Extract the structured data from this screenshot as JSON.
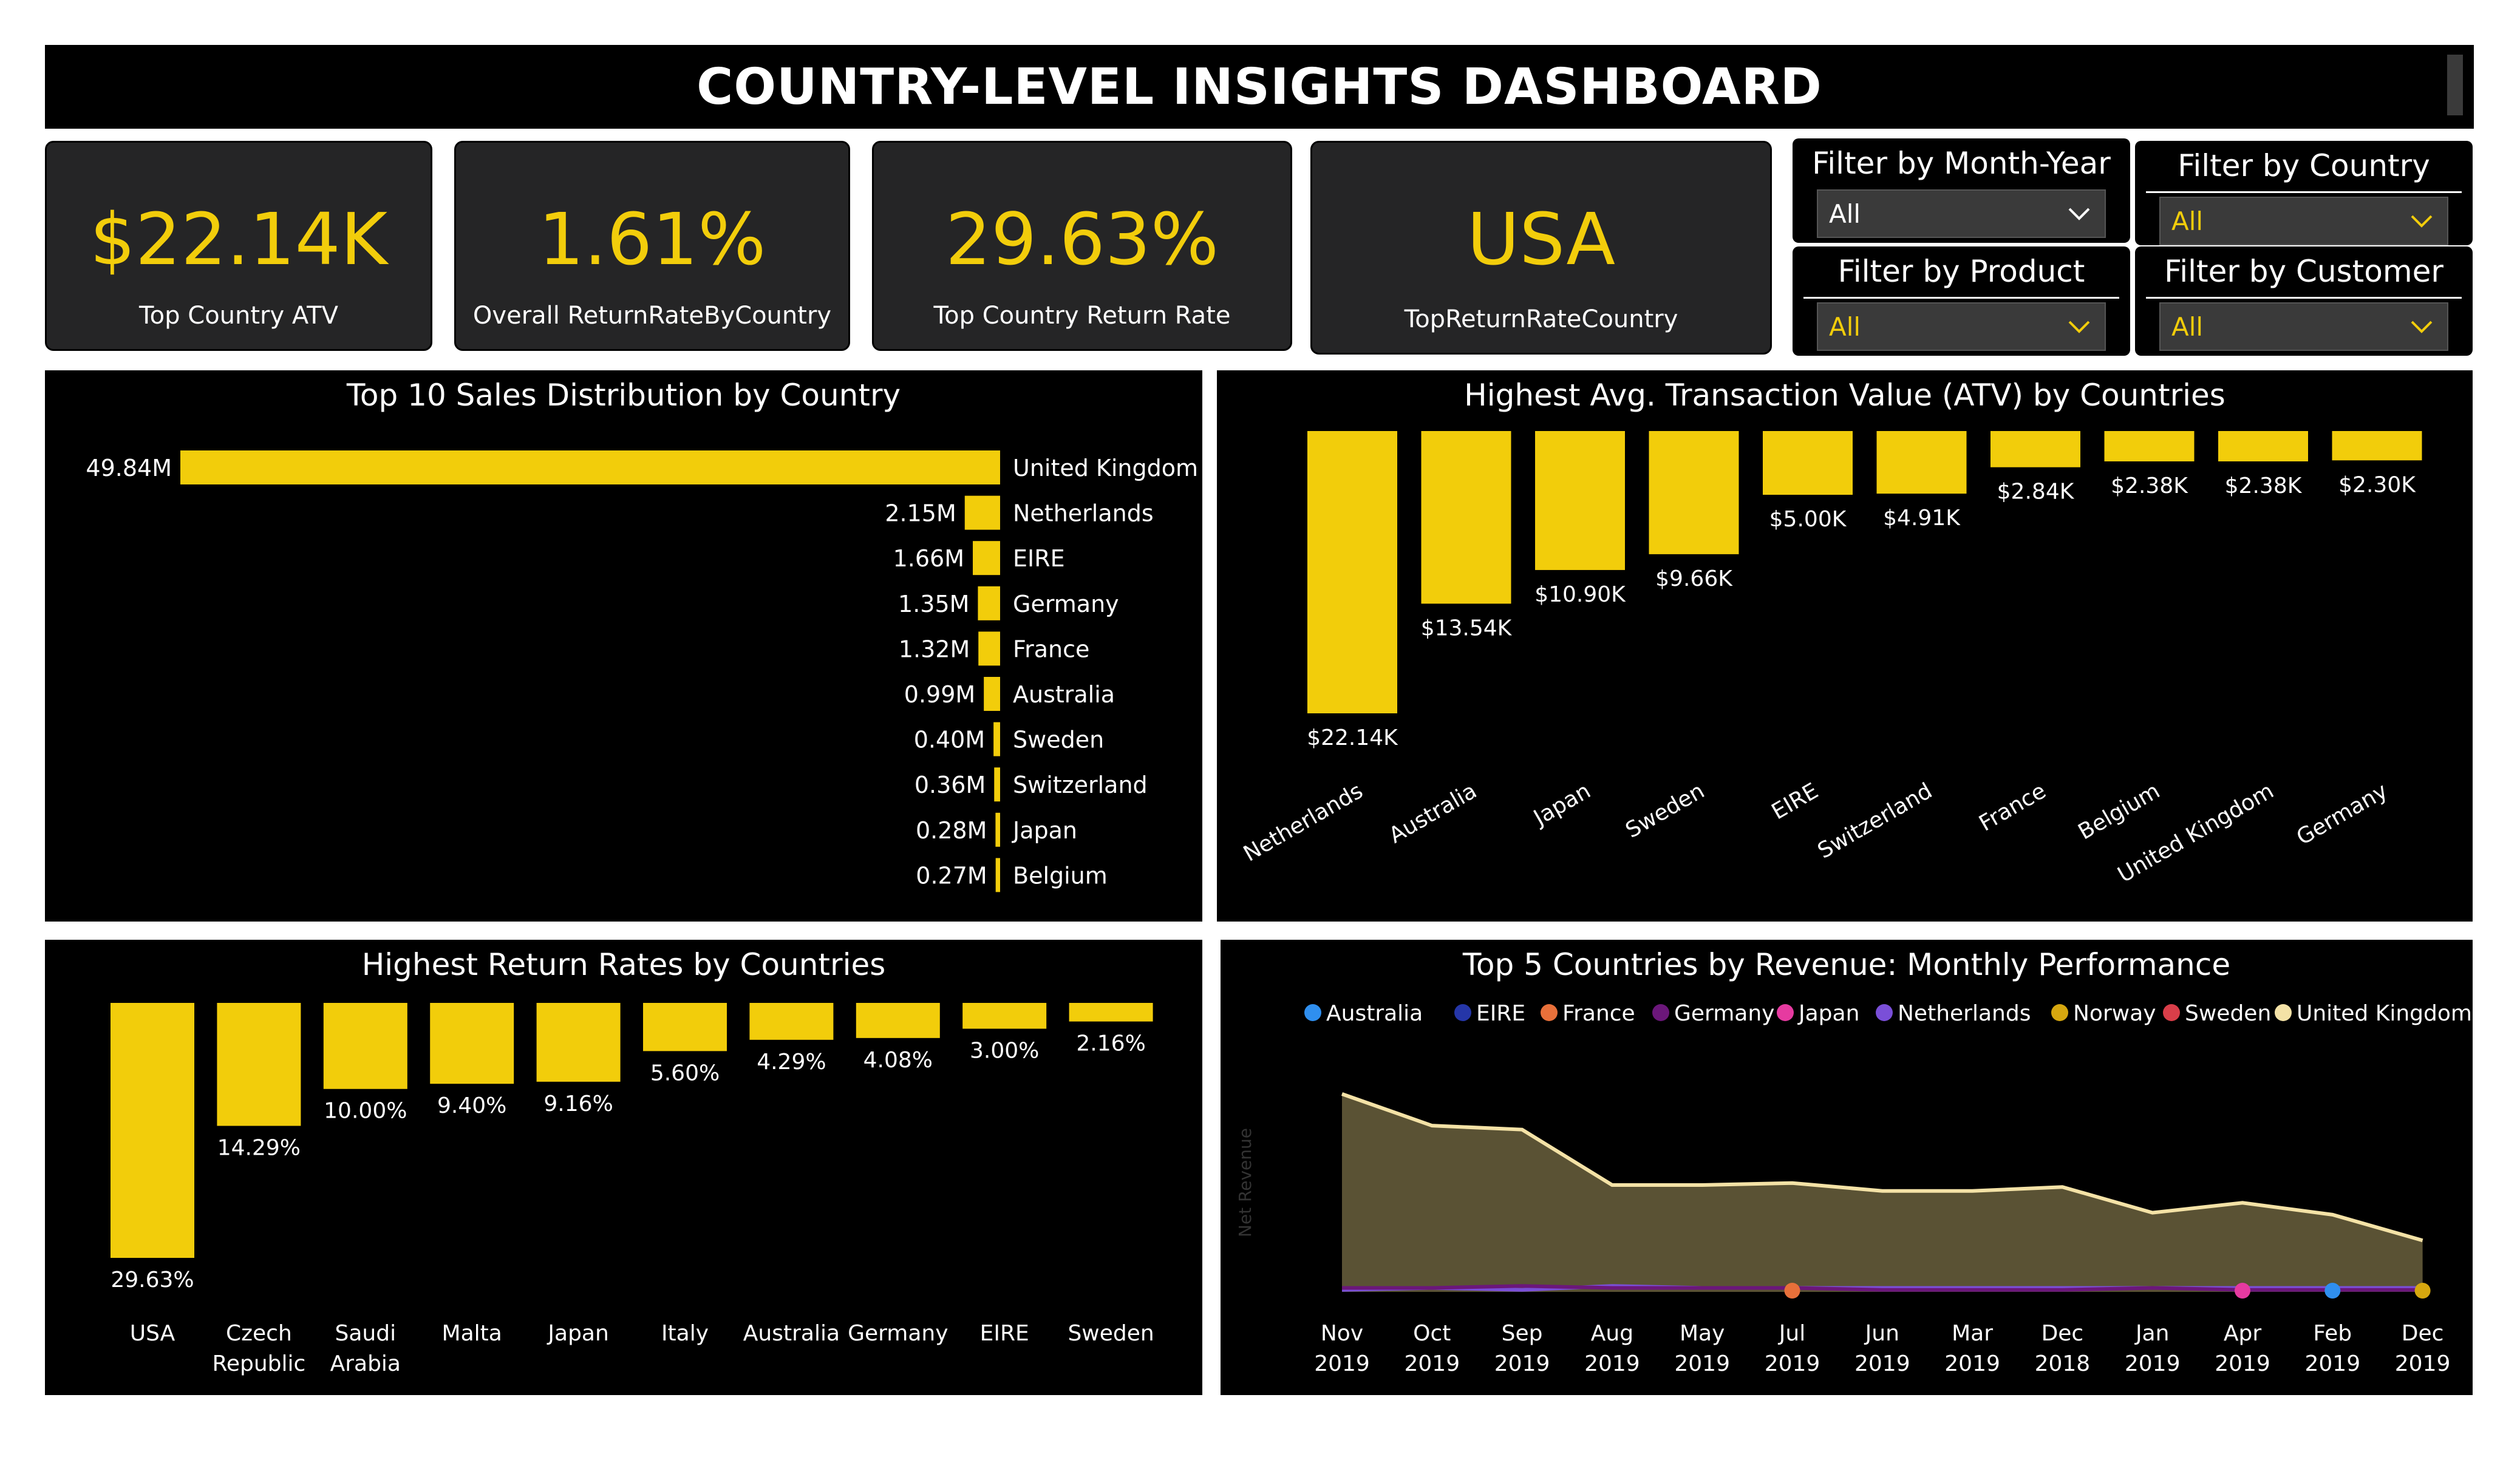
{
  "header": {
    "title": "COUNTRY-LEVEL INSIGHTS DASHBOARD"
  },
  "kpis": [
    {
      "value": "$22.14K",
      "label": "Top Country ATV"
    },
    {
      "value": "1.61%",
      "label": "Overall ReturnRateByCountry"
    },
    {
      "value": "29.63%",
      "label": "Top Country Return Rate"
    },
    {
      "value": "USA",
      "label": "TopReturnRateCountry"
    }
  ],
  "filters": [
    {
      "label": "Filter by Month-Year",
      "value": "All",
      "value_color": "#ffffff"
    },
    {
      "label": "Filter by Country",
      "value": "All",
      "value_color": "#f2cd0b"
    },
    {
      "label": "Filter by Product",
      "value": "All",
      "value_color": "#f2cd0b"
    },
    {
      "label": "Filter by Customer",
      "value": "All",
      "value_color": "#f2cd0b"
    }
  ],
  "colors": {
    "accent": "#f2cd0b",
    "panel_bg": "#000000",
    "kpi_bg": "#252526",
    "area_fill": "#5a5234",
    "area_line": "#f4e2a6"
  },
  "chart_data": [
    {
      "type": "bar",
      "orientation": "horizontal",
      "title": "Top 10 Sales Distribution by Country",
      "categories": [
        "United Kingdom",
        "Netherlands",
        "EIRE",
        "Germany",
        "France",
        "Australia",
        "Sweden",
        "Switzerland",
        "Japan",
        "Belgium"
      ],
      "values": [
        49.84,
        2.15,
        1.66,
        1.35,
        1.32,
        0.99,
        0.4,
        0.36,
        0.28,
        0.27
      ],
      "labels": [
        "49.84M",
        "2.15M",
        "1.66M",
        "1.35M",
        "1.32M",
        "0.99M",
        "0.40M",
        "0.36M",
        "0.28M",
        "0.27M"
      ],
      "unit": "M"
    },
    {
      "type": "bar",
      "title": "Highest Avg. Transaction Value (ATV) by Countries",
      "categories": [
        "Netherlands",
        "Australia",
        "Japan",
        "Sweden",
        "EIRE",
        "Switzerland",
        "France",
        "Belgium",
        "United Kingdom",
        "Germany"
      ],
      "values": [
        22.14,
        13.54,
        10.9,
        9.66,
        5.0,
        4.91,
        2.84,
        2.38,
        2.38,
        2.3
      ],
      "labels": [
        "$22.14K",
        "$13.54K",
        "$10.90K",
        "$9.66K",
        "$5.00K",
        "$4.91K",
        "$2.84K",
        "$2.38K",
        "$2.38K",
        "$2.30K"
      ],
      "unit": "K"
    },
    {
      "type": "bar",
      "title": "Highest Return Rates by Countries",
      "categories": [
        "USA",
        "Czech Republic",
        "Saudi Arabia",
        "Malta",
        "Japan",
        "Italy",
        "Australia",
        "Germany",
        "EIRE",
        "Sweden"
      ],
      "category_lines": [
        [
          "USA"
        ],
        [
          "Czech",
          "Republic"
        ],
        [
          "Saudi",
          "Arabia"
        ],
        [
          "Malta"
        ],
        [
          "Japan"
        ],
        [
          "Italy"
        ],
        [
          "Australia"
        ],
        [
          "Germany"
        ],
        [
          "EIRE"
        ],
        [
          "Sweden"
        ]
      ],
      "values": [
        29.63,
        14.29,
        10.0,
        9.4,
        9.16,
        5.6,
        4.29,
        4.08,
        3.0,
        2.16
      ],
      "labels": [
        "29.63%",
        "14.29%",
        "10.00%",
        "9.40%",
        "9.16%",
        "5.60%",
        "4.29%",
        "4.08%",
        "3.00%",
        "2.16%"
      ],
      "unit": "%"
    },
    {
      "type": "area",
      "title": "Top 5 Countries by Revenue: Monthly Performance",
      "ylabel": "Net Revenue",
      "x": [
        "Nov 2019",
        "Oct 2019",
        "Sep 2019",
        "Aug 2019",
        "May 2019",
        "Jul 2019",
        "Jun 2019",
        "Mar 2019",
        "Dec 2018",
        "Jan 2019",
        "Apr 2019",
        "Feb 2019",
        "Dec 2019"
      ],
      "legend": [
        {
          "name": "Australia",
          "color": "#2f8fef"
        },
        {
          "name": "EIRE",
          "color": "#2536a8"
        },
        {
          "name": "France",
          "color": "#e8703a"
        },
        {
          "name": "Germany",
          "color": "#6b177a"
        },
        {
          "name": "Japan",
          "color": "#e63aa0"
        },
        {
          "name": "Netherlands",
          "color": "#7a4fd8"
        },
        {
          "name": "Norway",
          "color": "#d6a70f"
        },
        {
          "name": "Sweden",
          "color": "#d93e49"
        },
        {
          "name": "United Kingdom",
          "color": "#f4e2a6"
        }
      ],
      "series_relative": {
        "United Kingdom": [
          1.0,
          0.84,
          0.82,
          0.54,
          0.54,
          0.55,
          0.51,
          0.51,
          0.53,
          0.4,
          0.45,
          0.39,
          0.26
        ],
        "Netherlands": [
          0.01,
          0.02,
          0.01,
          0.03,
          0.02,
          0.02,
          0.02,
          0.02,
          0.02,
          0.02,
          0.02,
          0.02,
          0.02
        ],
        "Germany": [
          0.02,
          0.02,
          0.03,
          0.02,
          0.02,
          0.02,
          0.01,
          0.01,
          0.01,
          0.02,
          0.01,
          0.01,
          0.01
        ]
      },
      "markers": [
        {
          "series": "France",
          "x_index": 5
        },
        {
          "series": "Japan",
          "x_index": 10
        },
        {
          "series": "Australia",
          "x_index": 11
        },
        {
          "series": "Norway",
          "x_index": 12
        }
      ]
    }
  ]
}
